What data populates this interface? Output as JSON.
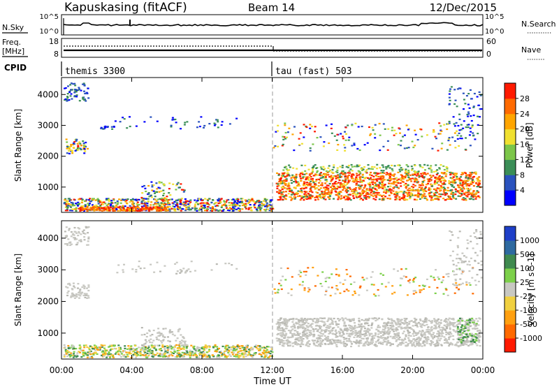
{
  "header": {
    "station": "Kapuskasing (fitACF)",
    "beam": "Beam 14",
    "date": "12/Dec/2015"
  },
  "noise_panel": {
    "left_label": "N.Sky",
    "left_ticks": [
      "10^5",
      "10^0"
    ],
    "right_label": "N.Search",
    "right_ticks": [
      "10^5",
      "10^0"
    ]
  },
  "freq_panel": {
    "left_label_line1": "Freq.",
    "left_label_line2": "[MHz]",
    "left_ticks": [
      "18",
      "8"
    ],
    "right_label": "Nave",
    "right_ticks": [
      "60",
      "0"
    ]
  },
  "cpid": {
    "label": "CPID",
    "segments": [
      {
        "name": "themis 3300",
        "start_hour": 0
      },
      {
        "name": "tau (fast) 503",
        "start_hour": 12
      }
    ]
  },
  "x_axis": {
    "title": "Time UT",
    "tick_labels": [
      "00:00",
      "04:00",
      "08:00",
      "12:00",
      "16:00",
      "20:00",
      "00:00"
    ]
  },
  "chart_data": [
    {
      "type": "heatmap",
      "name": "power",
      "xlabel": "Time UT",
      "ylabel": "Slant Range [km]",
      "xlim_hours": [
        0,
        24
      ],
      "ylim_km": [
        180,
        4550
      ],
      "y_ticks": [
        "1000",
        "2000",
        "3000",
        "4000"
      ],
      "colorbar": {
        "label": "Power [dB]",
        "ticks": [
          "4",
          "8",
          "12",
          "16",
          "20",
          "24",
          "28"
        ],
        "colors": [
          "#0000ff",
          "#2a52be",
          "#3b8e57",
          "#7cc64a",
          "#f0e030",
          "#ffa500",
          "#ff6a00",
          "#ff1a00"
        ]
      }
    },
    {
      "type": "heatmap",
      "name": "velocity",
      "xlabel": "Time UT",
      "ylabel": "Slant Range [km]",
      "xlim_hours": [
        0,
        24
      ],
      "ylim_km": [
        180,
        4550
      ],
      "y_ticks": [
        "1000",
        "2000",
        "3000",
        "4000"
      ],
      "colorbar": {
        "label": "Velocity [m s^-1]",
        "ticks": [
          "1000",
          "500",
          "100",
          "25",
          "-25",
          "-100",
          "-500",
          "-1000"
        ],
        "colors": [
          "#1e3fc8",
          "#2e6aa0",
          "#3f8a4f",
          "#7cd04a",
          "#c8c8c2",
          "#f0d040",
          "#ffa010",
          "#ff6a00",
          "#ff1a00"
        ]
      }
    }
  ]
}
